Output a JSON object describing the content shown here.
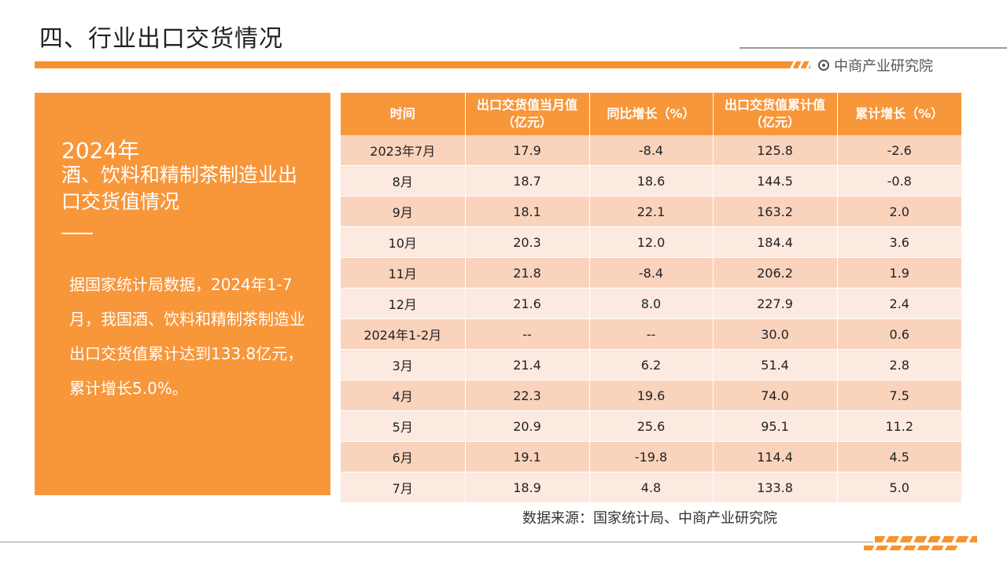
{
  "page": {
    "title": "四、行业出口交货情况",
    "logo_text": "中商产业研究院",
    "source": "数据来源：国家统计局、中商产业研究院"
  },
  "panel": {
    "year": "2024年",
    "heading": "酒、饮料和精制茶制造业出口交货值情况",
    "body": "据国家统计局数据，2024年1-7月，我国酒、饮料和精制茶制造业出口交货值累计达到133.8亿元，累计增长5.0%。"
  },
  "table": {
    "headers": [
      "时间",
      "出口交货值当月值（亿元）",
      "同比增长（%）",
      "出口交货值累计值（亿元）",
      "累计增长（%）"
    ],
    "rows": [
      [
        "2023年7月",
        "17.9",
        "-8.4",
        "125.8",
        "-2.6"
      ],
      [
        "8月",
        "18.7",
        "18.6",
        "144.5",
        "-0.8"
      ],
      [
        "9月",
        "18.1",
        "22.1",
        "163.2",
        "2.0"
      ],
      [
        "10月",
        "20.3",
        "12.0",
        "184.4",
        "3.6"
      ],
      [
        "11月",
        "21.8",
        "-8.4",
        "206.2",
        "1.9"
      ],
      [
        "12月",
        "21.6",
        "8.0",
        "227.9",
        "2.4"
      ],
      [
        "2024年1-2月",
        "--",
        "--",
        "30.0",
        "0.6"
      ],
      [
        "3月",
        "21.4",
        "6.2",
        "51.4",
        "2.8"
      ],
      [
        "4月",
        "22.3",
        "19.6",
        "74.0",
        "7.5"
      ],
      [
        "5月",
        "20.9",
        "25.6",
        "95.1",
        "11.2"
      ],
      [
        "6月",
        "19.1",
        "-19.8",
        "114.4",
        "4.5"
      ],
      [
        "7月",
        "18.9",
        "4.8",
        "133.8",
        "5.0"
      ]
    ]
  },
  "colors": {
    "accent": "#F8963A",
    "row_odd": "#FAD3BD",
    "row_even": "#FCE9E0"
  }
}
